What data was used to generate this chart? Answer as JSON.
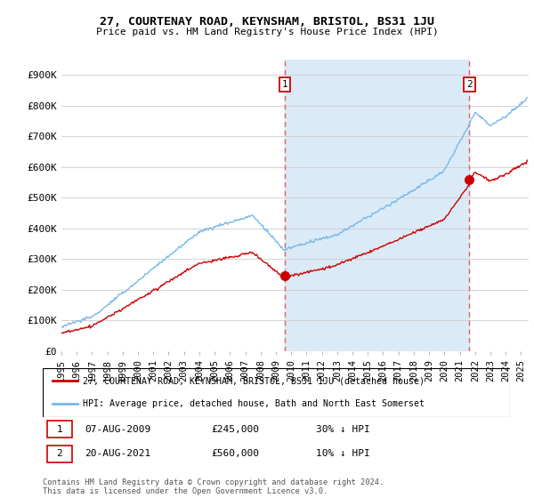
{
  "title": "27, COURTENAY ROAD, KEYNSHAM, BRISTOL, BS31 1JU",
  "subtitle": "Price paid vs. HM Land Registry's House Price Index (HPI)",
  "ylim": [
    0,
    950000
  ],
  "yticks": [
    0,
    100000,
    200000,
    300000,
    400000,
    500000,
    600000,
    700000,
    800000,
    900000
  ],
  "ytick_labels": [
    "£0",
    "£100K",
    "£200K",
    "£300K",
    "£400K",
    "£500K",
    "£600K",
    "£700K",
    "£800K",
    "£900K"
  ],
  "hpi_color": "#7ab8e8",
  "hpi_fill_color": "#daeaf7",
  "price_color": "#cc0000",
  "dashed_color": "#e06060",
  "background_color": "#ffffff",
  "grid_color": "#cccccc",
  "purchase1_date": 2009.6,
  "purchase1_price": 245000,
  "purchase2_date": 2021.63,
  "purchase2_price": 560000,
  "legend_address": "27, COURTENAY ROAD, KEYNSHAM, BRISTOL, BS31 1JU (detached house)",
  "legend_hpi": "HPI: Average price, detached house, Bath and North East Somerset",
  "note1_label": "1",
  "note1_date": "07-AUG-2009",
  "note1_price": "£245,000",
  "note1_hpi": "30% ↓ HPI",
  "note2_label": "2",
  "note2_date": "20-AUG-2021",
  "note2_price": "£560,000",
  "note2_hpi": "10% ↓ HPI",
  "copyright": "Contains HM Land Registry data © Crown copyright and database right 2024.\nThis data is licensed under the Open Government Licence v3.0.",
  "xlim": [
    1995.0,
    2025.5
  ],
  "xticks": [
    1995,
    1996,
    1997,
    1998,
    1999,
    2000,
    2001,
    2002,
    2003,
    2004,
    2005,
    2006,
    2007,
    2008,
    2009,
    2010,
    2011,
    2012,
    2013,
    2014,
    2015,
    2016,
    2017,
    2018,
    2019,
    2020,
    2021,
    2022,
    2023,
    2024,
    2025
  ]
}
